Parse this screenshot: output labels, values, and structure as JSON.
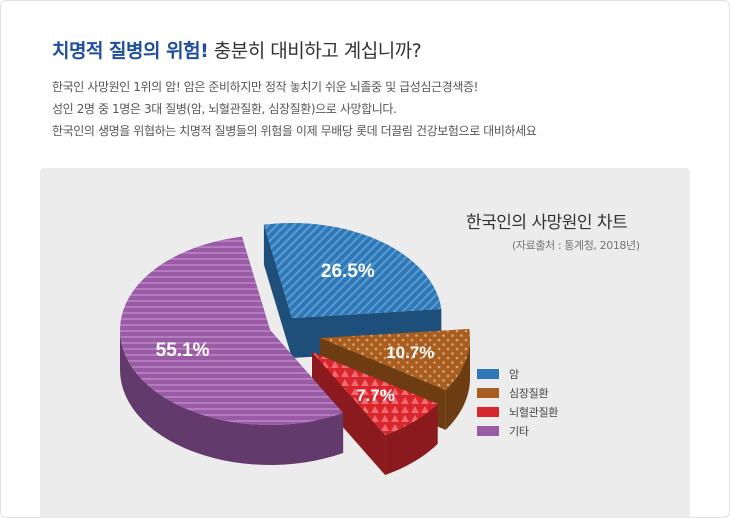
{
  "header": {
    "title_highlight": "치명적 질병의 위험!",
    "title_rest": " 충분히 대비하고 계십니까?",
    "lines": [
      "한국인 사망원인 1위의 암! 암은 준비하지만 정작 놓치기 쉬운 뇌졸중 및 급성심근경색증!",
      "성인 2명 중 1명은 3대 질병(암, 뇌혈관질환, 심장질환)으로 사망합니다.",
      "한국인의 생명을 위협하는 치명적 질병들의 위험을 이제 무배당 롯데 더끌림 건강보험으로 대비하세요"
    ]
  },
  "chart_data": {
    "type": "pie",
    "title": "한국인의 사망원인 차트",
    "subtitle": "(자료출처 : 통계청, 2018년)",
    "legend_position": "right",
    "slices": [
      {
        "name": "암",
        "value": 26.5,
        "label": "26.5%",
        "color": "#2e78b8",
        "side": "#1d4f7a"
      },
      {
        "name": "심장질환",
        "value": 10.7,
        "label": "10.7%",
        "color": "#a85e20",
        "side": "#6e3c12"
      },
      {
        "name": "뇌혈관질환",
        "value": 7.7,
        "label": "7.7%",
        "color": "#d9252c",
        "side": "#8a1a1e"
      },
      {
        "name": "기타",
        "value": 55.1,
        "label": "55.1%",
        "color": "#9a5aa6",
        "side": "#633a6c"
      }
    ]
  }
}
